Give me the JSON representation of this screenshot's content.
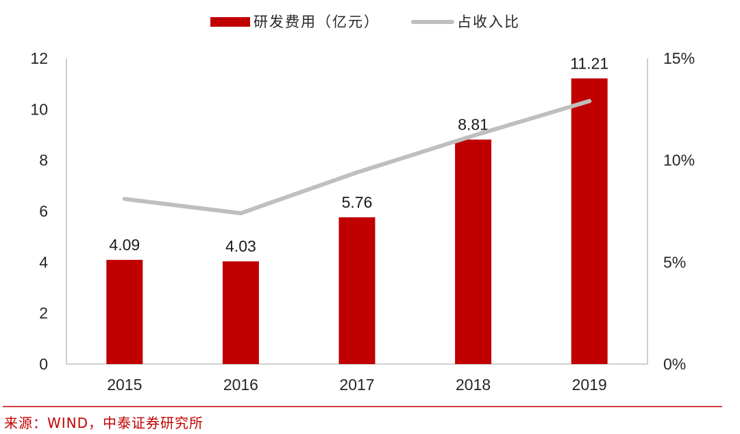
{
  "chart_data": {
    "type": "bar",
    "categories": [
      "2015",
      "2016",
      "2017",
      "2018",
      "2019"
    ],
    "series": [
      {
        "name": "研发费用（亿元）",
        "type": "bar",
        "axis": "left",
        "color": "#c00000",
        "values": [
          4.09,
          4.03,
          5.76,
          8.81,
          11.21
        ],
        "labels": [
          "4.09",
          "4.03",
          "5.76",
          "8.81",
          "11.21"
        ]
      },
      {
        "name": "占收入比",
        "type": "line",
        "axis": "right",
        "color": "#bfbfbf",
        "values": [
          8.1,
          7.4,
          9.4,
          11.2,
          12.9
        ]
      }
    ],
    "y_left": {
      "min": 0,
      "max": 12,
      "ticks": [
        0,
        2,
        4,
        6,
        8,
        10,
        12
      ],
      "tick_labels": [
        "0",
        "2",
        "4",
        "6",
        "8",
        "10",
        "12"
      ]
    },
    "y_right": {
      "min": 0,
      "max": 15,
      "ticks": [
        0,
        5,
        10,
        15
      ],
      "tick_labels": [
        "0%",
        "5%",
        "10%",
        "15%"
      ]
    },
    "legend_position": "top-center",
    "grid": false
  },
  "source": {
    "text": "来源：WIND，中泰证券研究所"
  }
}
